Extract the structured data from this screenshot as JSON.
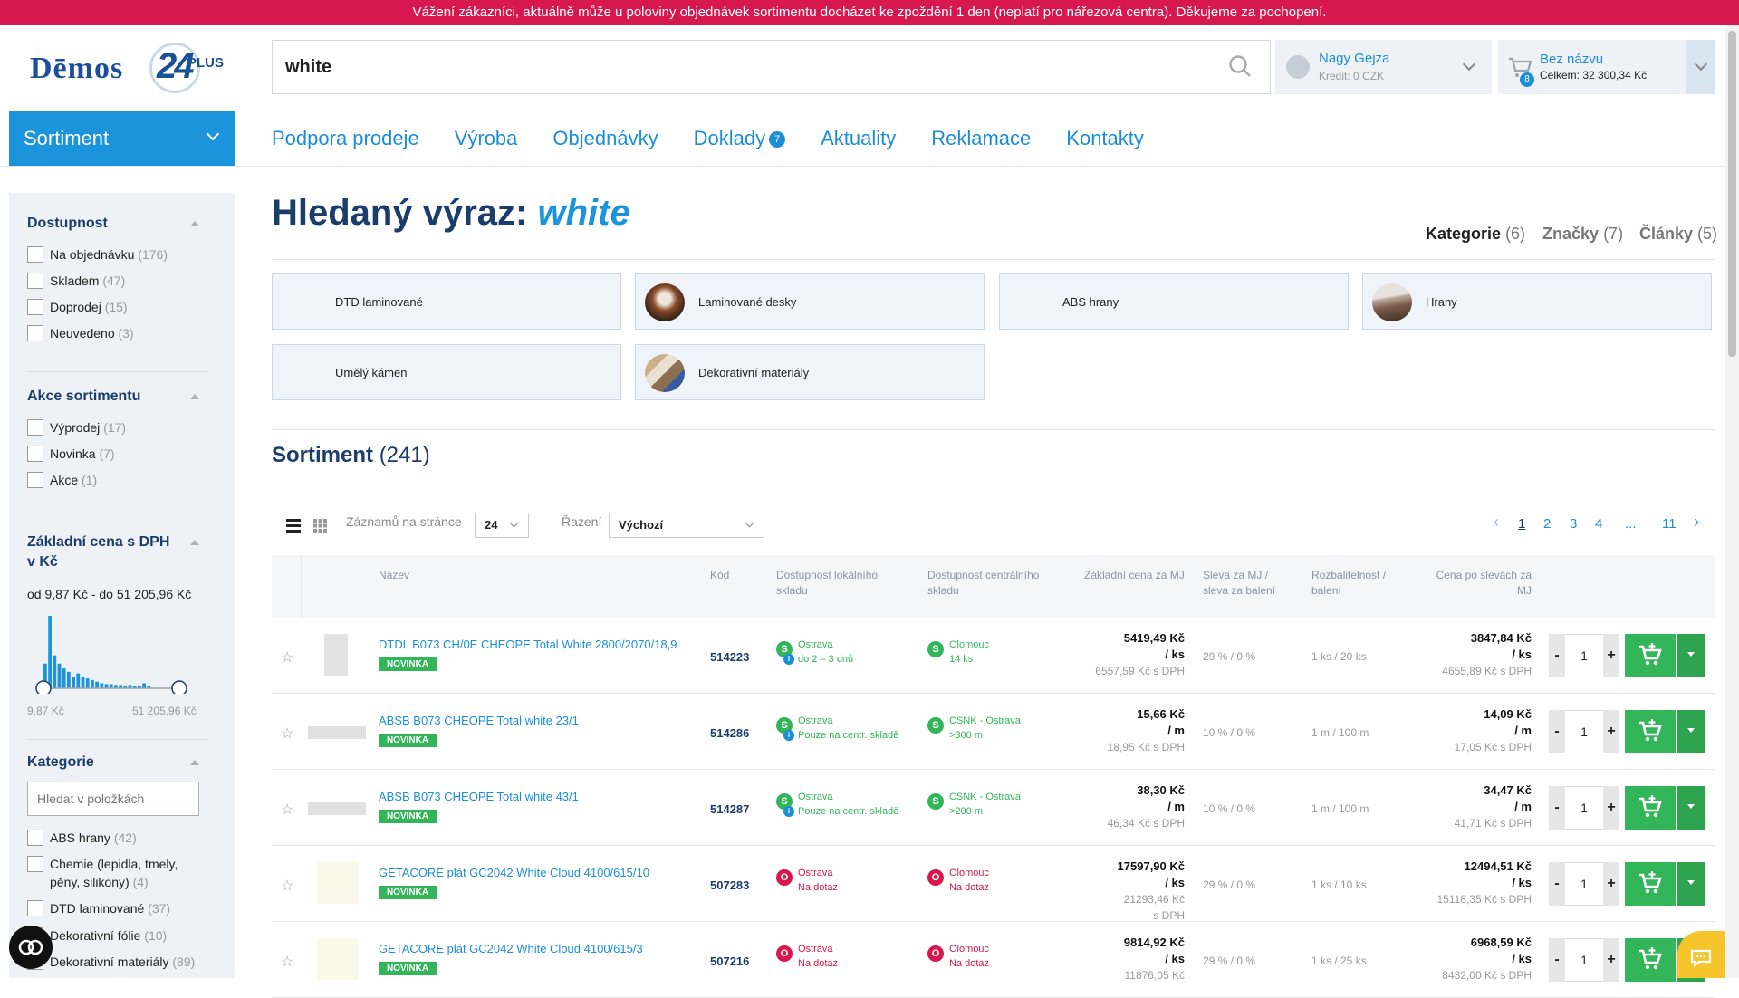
{
  "banner": "Vážení zákazníci, aktuálně může u poloviny objednávek sortimentu docházet ke zpoždění 1 den (neplatí pro nářezová centra). Děkujeme za pochopení.",
  "logo": {
    "text": "Dēmos",
    "num": "24",
    "plus": "PLUS"
  },
  "search": {
    "value": "white"
  },
  "user": {
    "name": "Nagy Gejza",
    "credit": "Kredit: 0 CZK"
  },
  "cart": {
    "title": "Bez názvu",
    "total": "Celkem: 32 300,34 Kč",
    "count": "8"
  },
  "sortiment_btn": "Sortiment",
  "nav": [
    "Podpora prodeje",
    "Výroba",
    "Objednávky",
    "Doklady",
    "Aktuality",
    "Reklamace",
    "Kontakty"
  ],
  "nav_badge": "7",
  "filters": {
    "dostupnost": {
      "title": "Dostupnost",
      "opts": [
        [
          "Na objednávku",
          "(176)"
        ],
        [
          "Skladem",
          "(47)"
        ],
        [
          "Doprodej",
          "(15)"
        ],
        [
          "Neuvedeno",
          "(3)"
        ]
      ]
    },
    "akce": {
      "title": "Akce sortimentu",
      "opts": [
        [
          "Výprodej",
          "(17)"
        ],
        [
          "Novinka",
          "(7)"
        ],
        [
          "Akce",
          "(1)"
        ]
      ]
    },
    "cena": {
      "title1": "Základní cena s DPH",
      "title2": "v Kč",
      "range": "od 9,87 Kč - do 51 205,96 Kč",
      "min": "9,87 Kč",
      "max": "51 205,96 Kč"
    },
    "kategorie": {
      "title": "Kategorie",
      "placeholder": "Hledat v položkách",
      "opts": [
        [
          "ABS hrany",
          "(42)"
        ],
        [
          "Chemie (lepidla, tmely,",
          "",
          ""
        ],
        [
          "pěny, silikony)",
          "(4)"
        ],
        [
          "DTD laminované",
          "(37)"
        ],
        [
          "Dekorativní fólie",
          "(10)"
        ],
        [
          "Dekorativní materiály",
          "(89)"
        ]
      ]
    }
  },
  "heading": {
    "label": "Hledaný výraz:",
    "term": "white"
  },
  "tabs": [
    {
      "label": "Kategorie",
      "count": "(6)"
    },
    {
      "label": "Značky",
      "count": "(7)"
    },
    {
      "label": "Články",
      "count": "(5)"
    }
  ],
  "categories": [
    "DTD laminované",
    "Laminované desky",
    "ABS hrany",
    "Hrany",
    "Umělý kámen",
    "Dekorativní materiály"
  ],
  "sortiment": {
    "title": "Sortiment",
    "count": "(241)"
  },
  "toolbar": {
    "per_page_label": "Záznamů na stránce",
    "per_page": "24",
    "sort_label": "Řazení",
    "sort": "Výchozí"
  },
  "pagination": [
    "1",
    "2",
    "3",
    "4",
    "...",
    "11"
  ],
  "columns": [
    "Název",
    "Kód",
    "Dostupnost lokálního|skladu",
    "Dostupnost centrálního|skladu",
    "Základní cena za MJ",
    "Sleva za MJ /|sleva za balení",
    "Rozbalitelnost /|balení",
    "Cena po slevách za|MJ"
  ],
  "products": [
    {
      "name": "DTDL B073 CH/0E CHEOPE Total White 2800/2070/18,9",
      "badge": "NOVINKA",
      "code": "514223",
      "loc1": "Ostrava",
      "loc2": "do 2 – 3 dnů",
      "loc_s": "S",
      "loc_info": true,
      "cen1": "Olomouc",
      "cen2": "14 ks",
      "cen_s": "S",
      "p1": "5419,49 Kč",
      "p2": "/ ks",
      "p3": "6557,59 Kč s DPH",
      "p4": "",
      "disc": "29 %  /  0 %",
      "pack": "1 ks / 20 ks",
      "f1": "3847,84 Kč",
      "f2": "/ ks",
      "f3": "4655,89 Kč s DPH",
      "qty": "1",
      "status": "g",
      "img": "tall"
    },
    {
      "name": "ABSB B073 CHEOPE Total white 23/1",
      "badge": "NOVINKA",
      "code": "514286",
      "loc1": "Ostrava",
      "loc2": "Pouze na centr. skladě",
      "loc_s": "S",
      "loc_info": true,
      "cen1": "CSNK - Ostrava",
      "cen2": ">300 m",
      "cen_s": "S",
      "p1": "15,66 Kč",
      "p2": "/ m",
      "p3": "18,95 Kč s DPH",
      "p4": "",
      "disc": "10 %  /  0 %",
      "pack": "1 m / 100 m",
      "f1": "14,09 Kč",
      "f2": "/ m",
      "f3": "17,05 Kč s DPH",
      "qty": "1",
      "status": "g",
      "img": "flat"
    },
    {
      "name": "ABSB B073 CHEOPE Total white 43/1",
      "badge": "NOVINKA",
      "code": "514287",
      "loc1": "Ostrava",
      "loc2": "Pouze na centr. skladě",
      "loc_s": "S",
      "loc_info": true,
      "cen1": "CSNK - Ostrava",
      "cen2": ">200 m",
      "cen_s": "S",
      "p1": "38,30 Kč",
      "p2": "/ m",
      "p3": "46,34 Kč s DPH",
      "p4": "",
      "disc": "10 %  /  0 %",
      "pack": "1 m / 100 m",
      "f1": "34,47 Kč",
      "f2": "/ m",
      "f3": "41,71 Kč s DPH",
      "qty": "1",
      "status": "g",
      "img": "flat"
    },
    {
      "name": "GETACORE plát GC2042 White Cloud 4100/615/10",
      "badge": "NOVINKA",
      "code": "507283",
      "loc1": "Ostrava",
      "loc2": "Na dotaz",
      "loc_s": "O",
      "loc_info": false,
      "cen1": "Olomouc",
      "cen2": "Na dotaz",
      "cen_s": "O",
      "p1": "17597,90 Kč",
      "p2": "/ ks",
      "p3": "21293,46 Kč",
      "p4": "s DPH",
      "disc": "29 %  /  0 %",
      "pack": "1 ks / 10 ks",
      "f1": "12494,51 Kč",
      "f2": "/ ks",
      "f3": "15118,35 Kč s DPH",
      "qty": "1",
      "status": "r",
      "img": "cream"
    },
    {
      "name": "GETACORE plát GC2042 White Cloud 4100/615/3",
      "badge": "NOVINKA",
      "code": "507216",
      "loc1": "Ostrava",
      "loc2": "Na dotaz",
      "loc_s": "O",
      "loc_info": false,
      "cen1": "Olomouc",
      "cen2": "Na dotaz",
      "cen_s": "O",
      "p1": "9814,92 Kč",
      "p2": "/ ks",
      "p3": "11876,05 Kč",
      "p4": "",
      "disc": "29 %  /  0 %",
      "pack": "1 ks / 25 ks",
      "f1": "6968,59 Kč",
      "f2": "/ ks",
      "f3": "8432,00 Kč s DPH",
      "qty": "1",
      "status": "r",
      "img": "cream"
    }
  ],
  "histogram": [
    30,
    88,
    40,
    30,
    24,
    20,
    14,
    18,
    14,
    12,
    10,
    8,
    6,
    5,
    5,
    4,
    4,
    3,
    4,
    3,
    3,
    6,
    3
  ],
  "colors": {
    "brand": "#1b94dc",
    "accent": "#33b65a",
    "alert": "#d6184e"
  }
}
